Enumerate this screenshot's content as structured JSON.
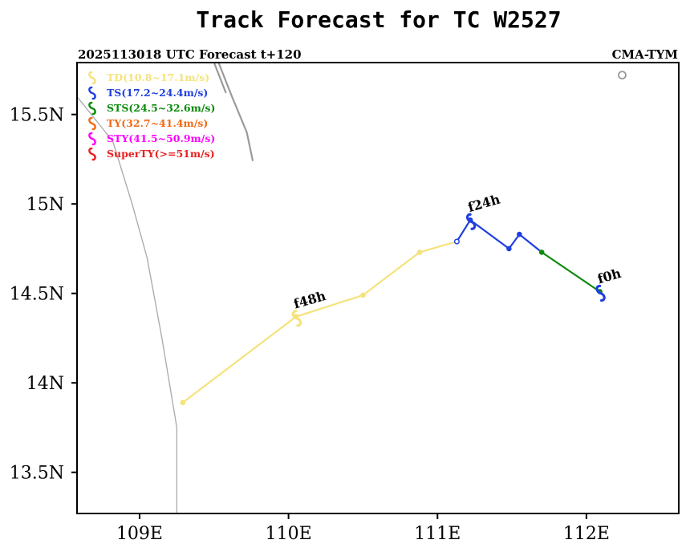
{
  "chart_data": {
    "type": "line",
    "title": "Track Forecast for TC W2527",
    "subtitle_left": "2025113018 UTC Forecast t+120",
    "subtitle_right": "CMA-TYM",
    "xlabel": "",
    "ylabel": "",
    "xlim": [
      108.58,
      112.62
    ],
    "ylim": [
      13.27,
      15.79
    ],
    "x_ticks": [
      109,
      110,
      111,
      112
    ],
    "x_tick_labels": [
      "109E",
      "110E",
      "111E",
      "112E"
    ],
    "y_ticks": [
      13.5,
      14,
      14.5,
      15,
      15.5
    ],
    "y_tick_labels": [
      "13.5N",
      "14N",
      "14.5N",
      "15N",
      "15.5N"
    ],
    "legend": {
      "placement": "top-left",
      "entries": [
        {
          "label": "TD(10.8~17.1m/s)",
          "color": "#f5e27a"
        },
        {
          "label": "TS(17.2~24.4m/s)",
          "color": "#1f3fe0"
        },
        {
          "label": "STS(24.5~32.6m/s)",
          "color": "#0a8a0a"
        },
        {
          "label": "TY(32.7~41.4m/s)",
          "color": "#f06a14"
        },
        {
          "label": "STY(41.5~50.9m/s)",
          "color": "#ff00ff"
        },
        {
          "label": "SuperTY(>=51m/s)",
          "color": "#e82020"
        }
      ]
    },
    "segments": [
      {
        "category": "STS",
        "color": "#0a8a0a",
        "points": [
          [
            112.09,
            14.51
          ],
          [
            111.7,
            14.73
          ]
        ]
      },
      {
        "category": "TS",
        "color": "#1f3fe0",
        "points": [
          [
            111.7,
            14.73
          ],
          [
            111.55,
            14.83
          ],
          [
            111.48,
            14.75
          ],
          [
            111.22,
            14.91
          ],
          [
            111.13,
            14.79
          ]
        ]
      },
      {
        "category": "TD",
        "color": "#f5e27a",
        "points": [
          [
            111.13,
            14.79
          ],
          [
            110.88,
            14.73
          ],
          [
            110.5,
            14.49
          ],
          [
            110.05,
            14.37
          ],
          [
            109.29,
            13.89
          ]
        ]
      }
    ],
    "points": [
      {
        "x": 112.09,
        "y": 14.51,
        "color": "#0a8a0a"
      },
      {
        "x": 111.7,
        "y": 14.73,
        "color": "#0a8a0a"
      },
      {
        "x": 111.55,
        "y": 14.83,
        "color": "#1f3fe0"
      },
      {
        "x": 111.48,
        "y": 14.75,
        "color": "#1f3fe0"
      },
      {
        "x": 111.22,
        "y": 14.91,
        "color": "#1f3fe0"
      },
      {
        "x": 111.13,
        "y": 14.79,
        "color": "#1f3fe0",
        "hollow": true
      },
      {
        "x": 110.88,
        "y": 14.73,
        "color": "#f5e27a"
      },
      {
        "x": 110.5,
        "y": 14.49,
        "color": "#f5e27a"
      },
      {
        "x": 110.05,
        "y": 14.37,
        "color": "#f5e27a"
      },
      {
        "x": 109.29,
        "y": 13.89,
        "color": "#f5e27a"
      }
    ],
    "annotations": [
      {
        "text": "f0h",
        "x": 112.09,
        "y": 14.51,
        "color": "#1f3fe0"
      },
      {
        "text": "f24h",
        "x": 111.22,
        "y": 14.91,
        "color": "#1f3fe0"
      },
      {
        "text": "f48h",
        "x": 110.05,
        "y": 14.37,
        "color": "#f5e27a"
      }
    ],
    "coastlines": [
      [
        [
          108.58,
          15.6
        ],
        [
          108.82,
          15.35
        ],
        [
          108.95,
          15.0
        ],
        [
          109.05,
          14.7
        ],
        [
          109.15,
          14.25
        ],
        [
          109.2,
          14.0
        ],
        [
          109.25,
          13.75
        ],
        [
          109.25,
          13.27
        ]
      ],
      [
        [
          109.53,
          15.79
        ],
        [
          109.62,
          15.6
        ],
        [
          109.72,
          15.4
        ],
        [
          109.76,
          15.24
        ]
      ],
      [
        [
          109.5,
          15.79
        ],
        [
          109.58,
          15.62
        ]
      ]
    ],
    "island": {
      "x": 112.24,
      "y": 15.72
    }
  }
}
